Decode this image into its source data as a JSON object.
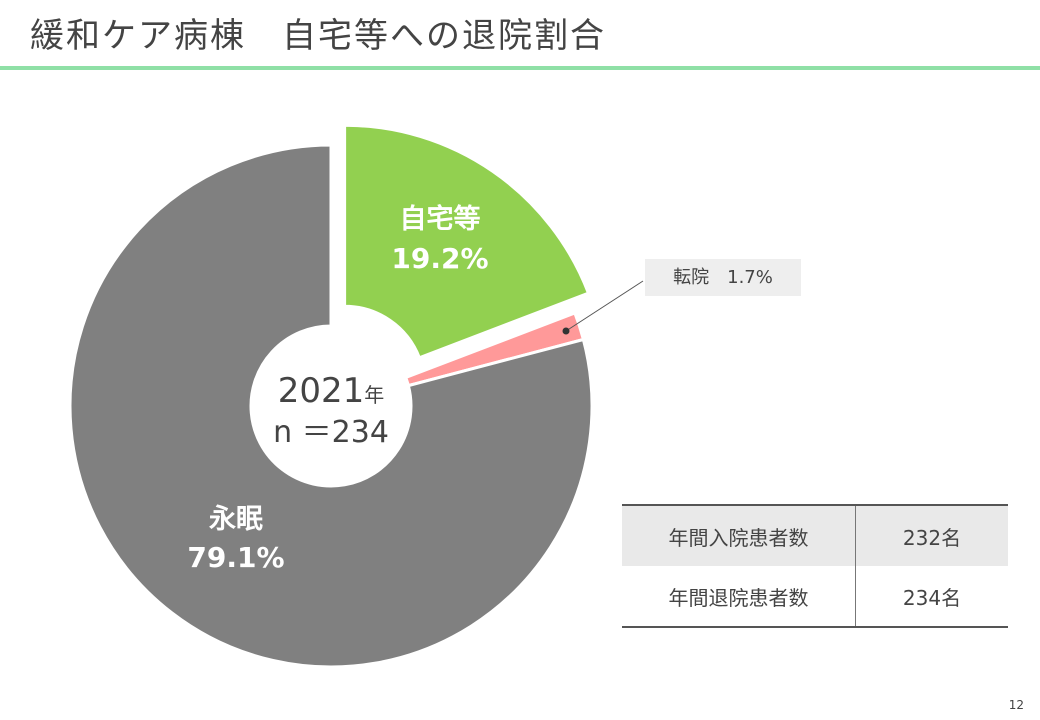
{
  "title": "緩和ケア病棟　自宅等への退院割合",
  "page_number": "12",
  "chart_data": {
    "type": "pie",
    "style": "donut",
    "center_label": {
      "year": "2021",
      "year_unit": "年",
      "n": "n ＝234"
    },
    "slices": [
      {
        "name": "自宅等",
        "value": 19.2,
        "label": "19.2%",
        "color": "#92d050",
        "exploded": true,
        "label_color": "#ffffff"
      },
      {
        "name": "転院",
        "value": 1.7,
        "label": "1.7%",
        "color": "#ff9999",
        "exploded": false,
        "callout": "転院　1.7%"
      },
      {
        "name": "永眠",
        "value": 79.1,
        "label": "79.1%",
        "color": "#808080",
        "exploded": false,
        "label_color": "#ffffff"
      }
    ]
  },
  "stats_table": {
    "rows": [
      {
        "label": "年間入院患者数",
        "value": "232名"
      },
      {
        "label": "年間退院患者数",
        "value": "234名"
      }
    ]
  }
}
